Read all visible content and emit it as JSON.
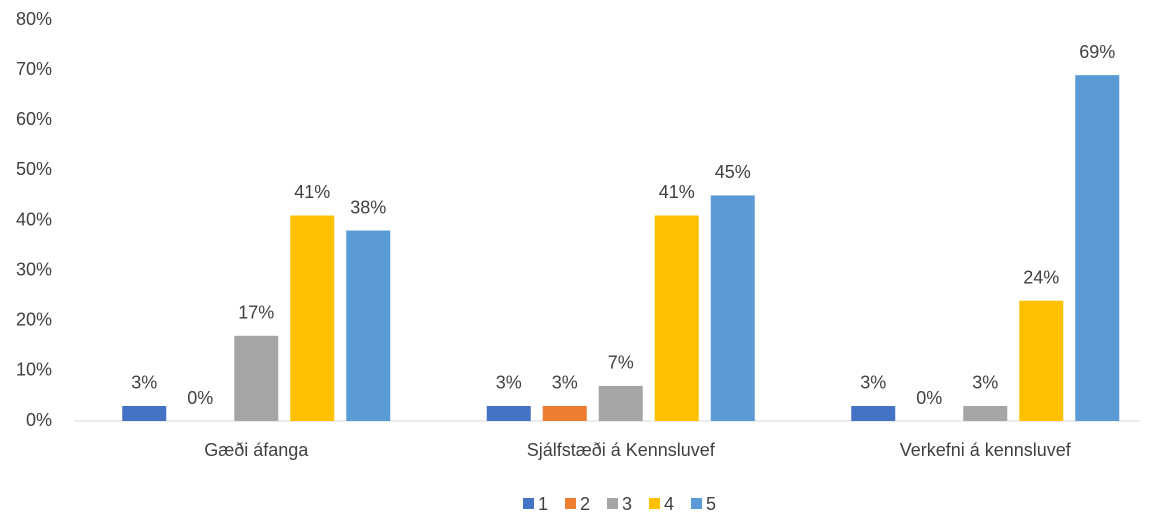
{
  "chart_data": {
    "type": "bar",
    "categories": [
      "Gæði áfanga",
      "Sjálfstæði á Kennsluvef",
      "Verkefni á kennsluvef"
    ],
    "series": [
      {
        "name": "1",
        "color": "#4472c4",
        "values": [
          3,
          3,
          3
        ],
        "value_labels": [
          "3%",
          "3%",
          "3%"
        ]
      },
      {
        "name": "2",
        "color": "#ed7d31",
        "values": [
          0,
          3,
          0
        ],
        "value_labels": [
          "0%",
          "3%",
          "0%"
        ]
      },
      {
        "name": "3",
        "color": "#a5a5a5",
        "values": [
          17,
          7,
          3
        ],
        "value_labels": [
          "17%",
          "7%",
          "3%"
        ]
      },
      {
        "name": "4",
        "color": "#ffc000",
        "values": [
          41,
          41,
          24
        ],
        "value_labels": [
          "41%",
          "41%",
          "24%"
        ]
      },
      {
        "name": "5",
        "color": "#5b9bd5",
        "values": [
          38,
          45,
          69
        ],
        "value_labels": [
          "38%",
          "45%",
          "69%"
        ]
      }
    ],
    "ylim": [
      0,
      80
    ],
    "yticks": [
      {
        "value": 0,
        "label": "0%"
      },
      {
        "value": 10,
        "label": "10%"
      },
      {
        "value": 20,
        "label": "20%"
      },
      {
        "value": 30,
        "label": "30%"
      },
      {
        "value": 40,
        "label": "40%"
      },
      {
        "value": 50,
        "label": "50%"
      },
      {
        "value": 60,
        "label": "60%"
      },
      {
        "value": 70,
        "label": "70%"
      },
      {
        "value": 80,
        "label": "80%"
      }
    ],
    "grid": false,
    "legend": "bottom"
  }
}
